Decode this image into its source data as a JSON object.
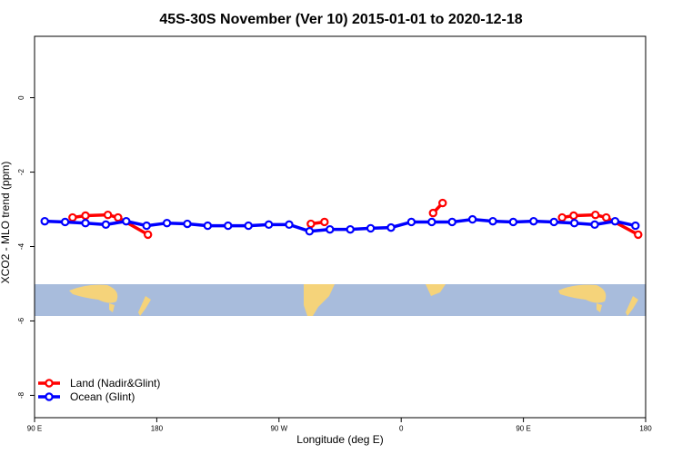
{
  "chart_data": {
    "type": "line",
    "title": "45S-30S November (Ver 10)   2015-01-01 to 2020-12-18",
    "x_label": "Longitude (deg E)",
    "y_label": "XCO2 - MLO trend (ppm)",
    "xlim": [
      90,
      540
    ],
    "xticks": [
      {
        "value": 90,
        "label": "90 E"
      },
      {
        "value": 180,
        "label": "180"
      },
      {
        "value": 270,
        "label": "90 W"
      },
      {
        "value": 360,
        "label": "0"
      },
      {
        "value": 450,
        "label": "90 E"
      },
      {
        "value": 540,
        "label": "180"
      }
    ],
    "ylim": [
      -8.6,
      1.65
    ],
    "yticks": [
      0,
      -2,
      -4,
      -6,
      -8
    ],
    "legend_position": "bottom-left",
    "series": [
      {
        "name": "Land (Nadir&Glint)",
        "color": "#ff0000",
        "x": [
          118,
          127.5,
          144,
          151.5,
          173.5,
          230,
          293.5,
          303.5,
          340,
          383.5,
          390.5,
          430,
          478.5,
          487,
          503,
          511,
          534.5
        ],
        "values": [
          -3.22,
          -3.17,
          -3.15,
          -3.22,
          -3.68,
          null,
          -3.39,
          -3.34,
          null,
          -3.1,
          -2.83,
          null,
          -3.22,
          -3.17,
          -3.15,
          -3.22,
          -3.68
        ]
      },
      {
        "name": "Ocean (Glint)",
        "color": "#0000ff",
        "x": [
          97.5,
          112.5,
          127.5,
          142.5,
          157.5,
          172.5,
          187.5,
          202.5,
          217.5,
          232.5,
          247.5,
          262.5,
          277.5,
          292.5,
          307.5,
          322.5,
          337.5,
          352.5,
          367.5,
          382.5,
          397.5,
          412.5,
          427.5,
          442.5,
          457.5,
          472.5,
          487.5,
          502.5,
          517.5,
          532.5
        ],
        "values": [
          -3.32,
          -3.34,
          -3.37,
          -3.41,
          -3.32,
          -3.44,
          -3.37,
          -3.39,
          -3.44,
          -3.44,
          -3.44,
          -3.41,
          -3.41,
          -3.59,
          -3.54,
          -3.54,
          -3.51,
          -3.49,
          -3.34,
          -3.34,
          -3.34,
          -3.27,
          -3.32,
          -3.34,
          -3.32,
          -3.34,
          -3.37,
          -3.41,
          -3.32,
          -3.44
        ]
      }
    ]
  }
}
